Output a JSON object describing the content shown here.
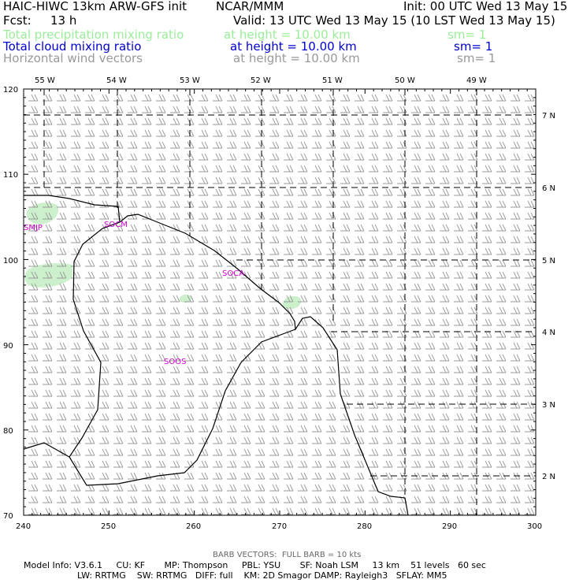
{
  "header": {
    "title": "HAIC-HIWC 13km ARW-GFS init",
    "org": "NCAR/MMM",
    "init": "Init: 00 UTC Wed 13 May 15",
    "fcst_label": "Fcst:",
    "fcst_value": "13 h",
    "valid": "Valid: 13 UTC Wed 13 May 15 (10 LST Wed 13 May 15)",
    "fields": [
      {
        "name": "Total precipitation mixing ratio",
        "level": "at height = 10.00 km",
        "smooth": "sm= 1",
        "color": "#99ee99"
      },
      {
        "name": "Total cloud mixing ratio",
        "level": "at height = 10.00 km",
        "smooth": "sm= 1",
        "color": "#0000cc"
      },
      {
        "name": "Horizontal wind vectors",
        "level": "at height = 10.00 km",
        "smooth": "sm= 1",
        "color": "#999999"
      }
    ]
  },
  "map": {
    "lon_labels": [
      "55 W",
      "54 W",
      "53 W",
      "52 W",
      "51 W",
      "50 W",
      "49 W"
    ],
    "lat_labels": [
      "7 N",
      "6 N",
      "5 N",
      "4 N",
      "3 N",
      "2 N"
    ],
    "y_axis": [
      120,
      110,
      100,
      90,
      80,
      70
    ],
    "x_axis": [
      240,
      250,
      260,
      270,
      280,
      290,
      300
    ],
    "station_labels": [
      "SMJP",
      "SOCM",
      "SOCA",
      "SOOS"
    ],
    "station_color": "#cc00cc",
    "precip_color": "#ccf0cc",
    "barb_color": "#999999"
  },
  "footer": {
    "barb_note": "BARB VECTORS:  FULL BARB = 10 kts",
    "model_line1": "Model Info: V3.6.1     CU: KF       MP: Thompson     PBL: YSU       SF: Noah LSM     13 km    51 levels   60 sec",
    "model_line2": "LW: RRTMG    SW: RRTMG   DIFF: full    KM: 2D Smagor DAMP: Rayleigh3   SFLAY: MM5"
  }
}
